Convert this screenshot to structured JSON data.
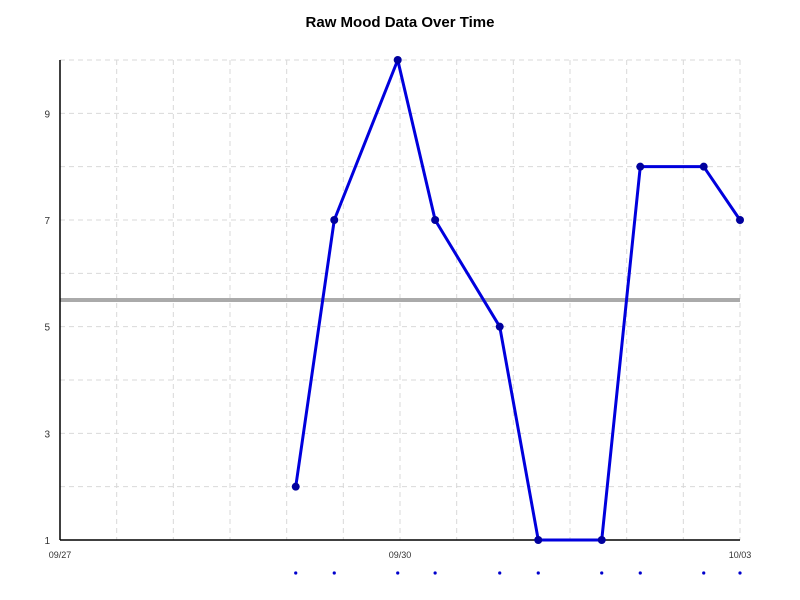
{
  "chart_data": {
    "type": "line",
    "title": "Raw Mood Data Over Time",
    "xlabel": "",
    "ylabel": "",
    "x_ticks": [
      {
        "label": "09/27",
        "day": 0
      },
      {
        "label": "09/30",
        "day": 3
      },
      {
        "label": "10/03",
        "day": 6
      }
    ],
    "y_ticks": [
      1,
      3,
      5,
      7,
      9
    ],
    "xlim": [
      "09/27",
      "10/03"
    ],
    "ylim": [
      1,
      10
    ],
    "grid": true,
    "reference_line": {
      "value": 5.5,
      "color": "#aaaaaa"
    },
    "series": [
      {
        "color": "#0000dd",
        "points": [
          {
            "x": 2.08,
            "y": 2
          },
          {
            "x": 2.42,
            "y": 7
          },
          {
            "x": 2.98,
            "y": 10
          },
          {
            "x": 3.31,
            "y": 7
          },
          {
            "x": 3.88,
            "y": 5
          },
          {
            "x": 4.22,
            "y": 1
          },
          {
            "x": 4.78,
            "y": 1
          },
          {
            "x": 5.12,
            "y": 8
          },
          {
            "x": 5.68,
            "y": 8
          },
          {
            "x": 6.0,
            "y": 7
          }
        ]
      }
    ]
  }
}
